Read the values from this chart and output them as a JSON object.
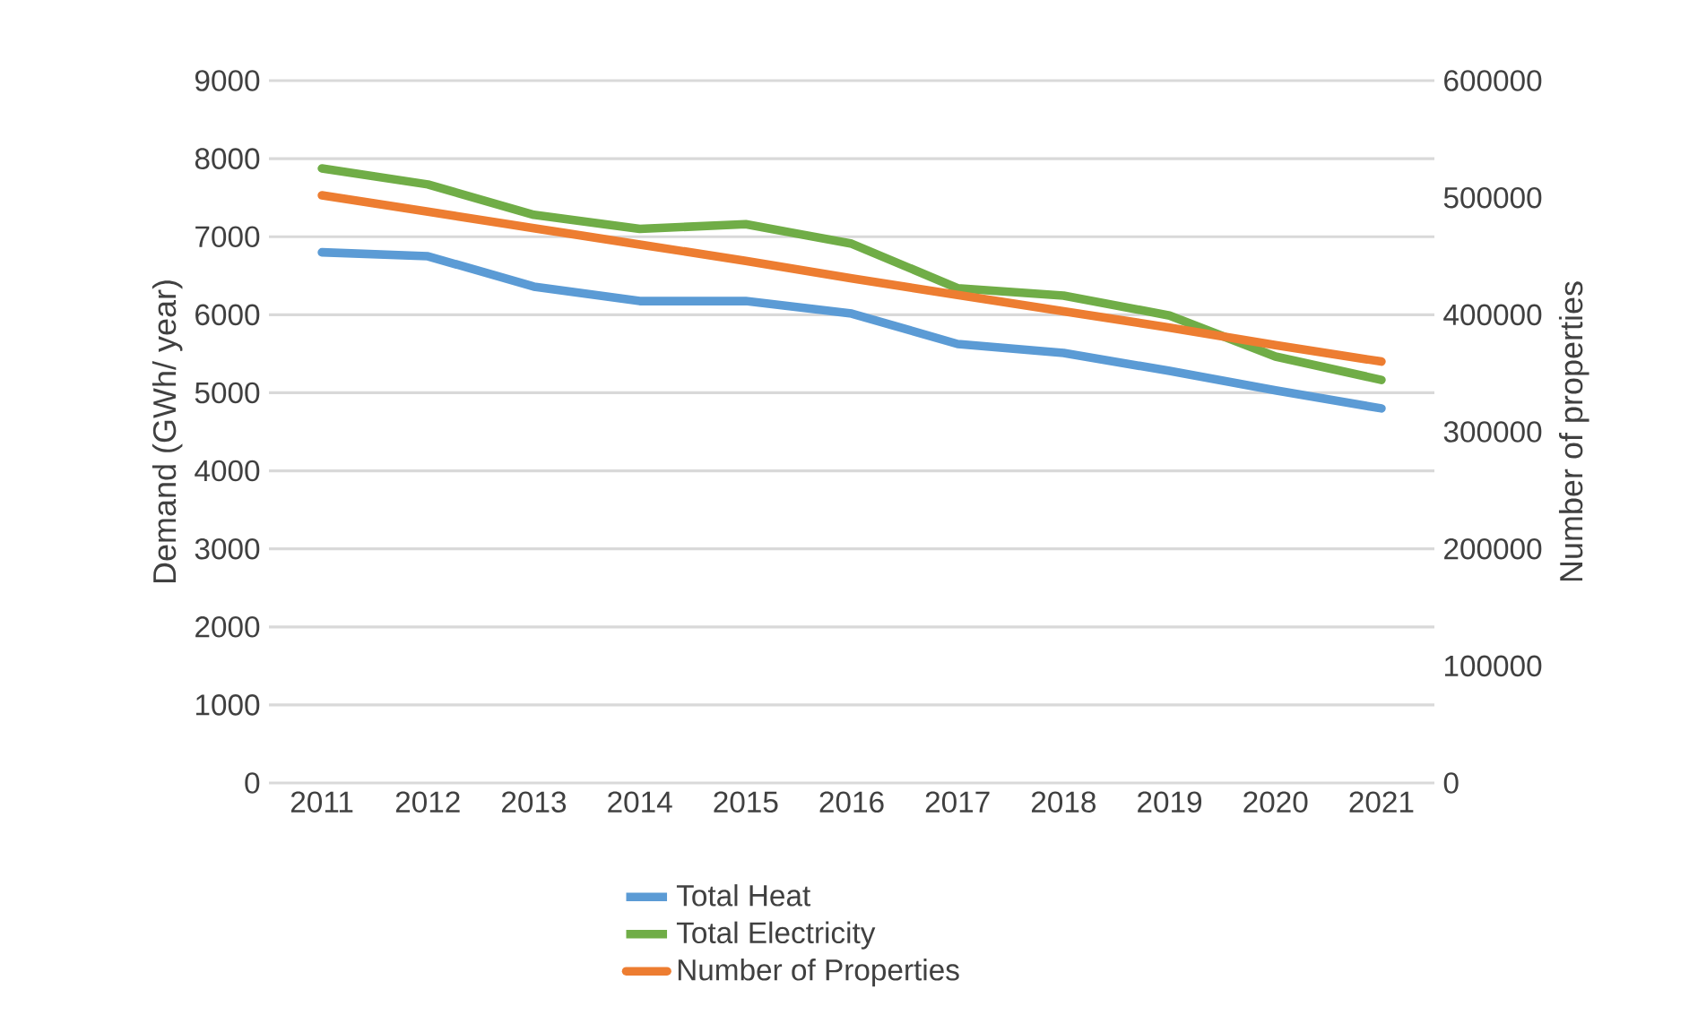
{
  "chart_data": {
    "type": "line",
    "ylabel": "Demand (GWh/ year)",
    "y2label": "Number of properties",
    "categories": [
      "2011",
      "2012",
      "2013",
      "2014",
      "2015",
      "2016",
      "2017",
      "2018",
      "2019",
      "2020",
      "2021"
    ],
    "series": [
      {
        "name": "Total Heat",
        "color": "#5b9bd5",
        "values": [
          6800,
          6750,
          6360,
          6175,
          6175,
          6015,
          5625,
          5510,
          5280,
          5030,
          4800
        ]
      },
      {
        "name": "Total Electricity",
        "color": "#70ad47",
        "values": [
          7875,
          7670,
          7280,
          7100,
          7160,
          6910,
          6340,
          6245,
          5990,
          5465,
          5165
        ]
      },
      {
        "name": "Number of Properties",
        "color": "#ed7d31",
        "axis": "y2",
        "values": [
          502000,
          488000,
          474000,
          460000,
          446000,
          431000,
          417000,
          403000,
          389000,
          374000,
          360000
        ]
      }
    ],
    "ylim": [
      0,
      9000
    ],
    "yticks": [
      0,
      1000,
      2000,
      3000,
      4000,
      5000,
      6000,
      7000,
      8000,
      9000
    ],
    "y2lim": [
      0,
      600000
    ],
    "y2ticks": [
      0,
      100000,
      200000,
      300000,
      400000,
      500000,
      600000
    ],
    "grid": "y",
    "legend": "bottom"
  }
}
